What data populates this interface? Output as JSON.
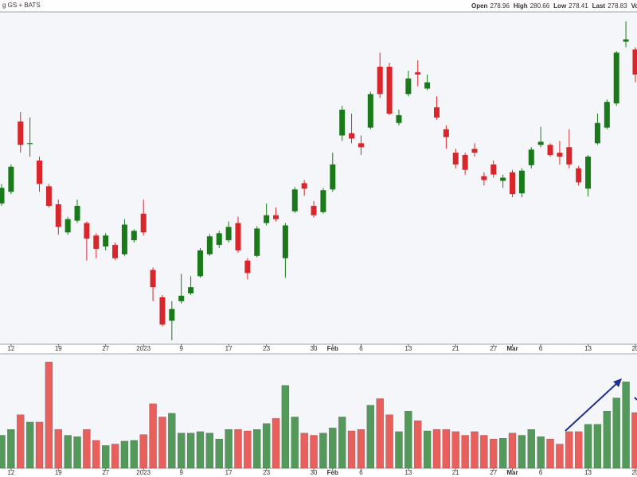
{
  "header": {
    "source": "g GS + BATS",
    "quote": [
      {
        "label": "Open",
        "value": 278.96
      },
      {
        "label": "High",
        "value": 280.66
      },
      {
        "label": "Low",
        "value": 278.41
      },
      {
        "label": "Last",
        "value": 278.83
      },
      {
        "label": "Volume"
      }
    ]
  },
  "chart_data": {
    "type": "candlestick",
    "categories": [
      null,
      "12",
      null,
      null,
      null,
      null,
      "19",
      null,
      null,
      null,
      null,
      "27",
      null,
      null,
      null,
      "2023",
      null,
      null,
      null,
      "9",
      null,
      null,
      null,
      null,
      "17",
      null,
      null,
      null,
      "23",
      null,
      null,
      null,
      null,
      "30",
      null,
      "Feb",
      null,
      null,
      "6",
      null,
      null,
      null,
      null,
      "13",
      null,
      null,
      null,
      null,
      "21",
      null,
      null,
      null,
      "27",
      null,
      "Mar",
      null,
      null,
      "6",
      null,
      null,
      null,
      null,
      "13",
      null,
      null,
      null,
      null,
      "20"
    ],
    "open": [
      261.5,
      263.0,
      272.0,
      269.1,
      267.0,
      263.7,
      261.4,
      257.8,
      259.3,
      259.0,
      257.4,
      256.0,
      256.2,
      255.0,
      256.8,
      260.2,
      253.0,
      249.5,
      246.5,
      249.0,
      250.0,
      252.2,
      255.0,
      256.2,
      256.8,
      259.0,
      254.2,
      254.8,
      259.0,
      260.0,
      254.5,
      260.5,
      264.1,
      261.2,
      260.4,
      263.3,
      270.2,
      270.5,
      269.2,
      271.2,
      279.0,
      279.0,
      271.8,
      275.5,
      278.3,
      276.2,
      273.8,
      271.0,
      268.0,
      267.7,
      268.5,
      265.0,
      266.5,
      264.4,
      265.5,
      262.8,
      266.4,
      269.0,
      269.0,
      268.0,
      268.7,
      266.0,
      263.4,
      269.2,
      271.2,
      274.3,
      282.2,
      281.2
    ],
    "high": [
      264.0,
      266.5,
      273.2,
      272.5,
      267.5,
      264.0,
      262.0,
      259.8,
      262.0,
      259.2,
      257.7,
      257.7,
      256.5,
      259.5,
      258.2,
      262.0,
      253.3,
      249.8,
      249.0,
      252.5,
      252.2,
      255.8,
      257.6,
      258.0,
      259.2,
      259.8,
      254.5,
      258.6,
      261.5,
      261.0,
      259.0,
      263.6,
      264.5,
      261.8,
      263.5,
      268.0,
      274.0,
      273.0,
      270.2,
      275.8,
      280.8,
      279.5,
      273.5,
      278.5,
      279.8,
      278.0,
      275.2,
      271.5,
      268.5,
      268.0,
      269.2,
      265.5,
      267.0,
      265.2,
      265.8,
      266.0,
      268.7,
      271.3,
      269.2,
      269.5,
      271.0,
      266.3,
      267.7,
      273.0,
      274.8,
      281.0,
      284.8,
      281.5
    ],
    "low": [
      261.2,
      262.7,
      268.0,
      267.5,
      263.0,
      261.0,
      257.5,
      257.5,
      259.0,
      254.2,
      254.5,
      255.5,
      254.3,
      254.8,
      256.5,
      257.4,
      249.0,
      245.8,
      244.0,
      248.7,
      249.8,
      252.0,
      254.8,
      255.8,
      256.5,
      255.2,
      251.8,
      254.6,
      258.7,
      259.2,
      252.0,
      260.3,
      262.5,
      259.7,
      260.2,
      263.0,
      269.5,
      269.2,
      267.7,
      271.0,
      275.0,
      272.8,
      271.5,
      275.2,
      276.5,
      276.0,
      272.2,
      268.5,
      266.0,
      265.2,
      267.5,
      263.8,
      264.8,
      263.5,
      262.3,
      262.3,
      266.0,
      268.7,
      267.5,
      266.5,
      266.0,
      263.8,
      262.4,
      269.0,
      271.0,
      274.0,
      281.5,
      277.0
    ],
    "close": [
      263.5,
      266.2,
      269.0,
      269.2,
      264.0,
      261.2,
      258.5,
      259.5,
      261.2,
      257.0,
      255.7,
      257.4,
      254.5,
      258.8,
      258.0,
      257.8,
      250.8,
      246.0,
      248.0,
      249.7,
      250.8,
      255.5,
      257.3,
      257.7,
      258.5,
      255.5,
      252.6,
      258.3,
      260.0,
      259.5,
      258.7,
      263.3,
      263.4,
      260.0,
      263.2,
      266.5,
      273.5,
      269.8,
      268.7,
      275.5,
      275.5,
      273.0,
      272.8,
      277.5,
      278.0,
      277.0,
      272.5,
      270.0,
      266.5,
      265.8,
      268.0,
      264.5,
      265.2,
      264.8,
      262.7,
      265.7,
      268.4,
      269.4,
      267.7,
      267.5,
      266.5,
      264.2,
      267.5,
      271.8,
      274.5,
      280.8,
      282.5,
      278.0
    ],
    "volume": [
      4.5,
      5.3,
      7.3,
      6.3,
      6.3,
      14.5,
      5.3,
      4.5,
      4.3,
      5.3,
      3.8,
      3.1,
      3.3,
      3.7,
      3.8,
      4.6,
      8.8,
      7.0,
      7.5,
      4.8,
      4.8,
      5.0,
      4.8,
      4.0,
      5.3,
      5.3,
      5.1,
      5.3,
      6.1,
      6.8,
      11.3,
      7.0,
      4.8,
      4.5,
      4.8,
      5.5,
      7.0,
      5.1,
      5.3,
      8.6,
      9.5,
      7.3,
      5.0,
      7.8,
      6.5,
      5.1,
      5.3,
      5.3,
      5.0,
      4.5,
      5.0,
      4.5,
      4.0,
      4.1,
      4.8,
      4.5,
      5.3,
      4.3,
      4.0,
      3.3,
      5.0,
      5.0,
      6.0,
      6.0,
      7.8,
      9.6,
      11.8,
      7.6
    ],
    "ylim": [
      243.8,
      285.5
    ],
    "volume_ylim": [
      0,
      15.3
    ],
    "up_color": "#1a7a1a",
    "down_color": "#d9262b",
    "volume_up_color": "#52995a",
    "volume_down_color": "#e85f5c"
  }
}
